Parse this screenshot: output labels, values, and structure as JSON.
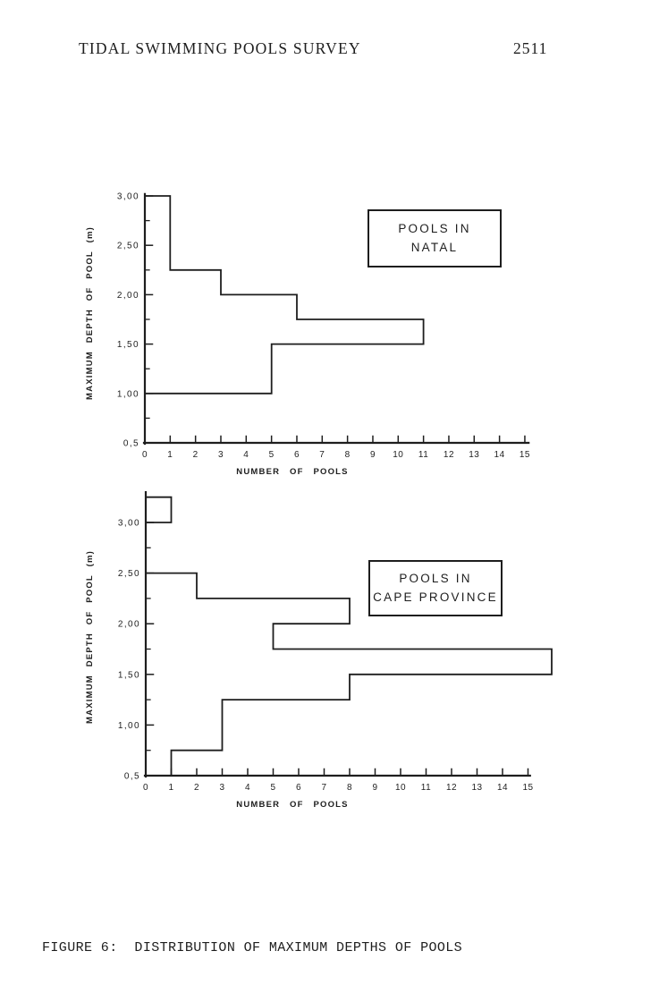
{
  "header": {
    "title": "TIDAL SWIMMING POOLS SURVEY",
    "page_number": "2511"
  },
  "caption": "FIGURE 6:  DISTRIBUTION OF MAXIMUM DEPTHS OF POOLS",
  "colors": {
    "ink": "#1e1e1e",
    "paper": "#ffffff"
  },
  "chart_data": [
    {
      "type": "bar",
      "subtype": "horizontal-step-histogram",
      "title": "POOLS IN NATAL",
      "legend": {
        "line1": "POOLS IN",
        "line2": "NATAL"
      },
      "xlabel": "NUMBER OF POOLS",
      "ylabel": "MAXIMUM DEPTH OF POOL (m)",
      "xlim": [
        0,
        15
      ],
      "ylim": [
        0.5,
        3.0
      ],
      "x_ticks": [
        0,
        1,
        2,
        3,
        4,
        5,
        6,
        7,
        8,
        9,
        10,
        11,
        12,
        13,
        14,
        15
      ],
      "y_ticks": [
        {
          "value": 3.0,
          "label": "3,00"
        },
        {
          "value": 2.5,
          "label": "2,50"
        },
        {
          "value": 2.0,
          "label": "2,00"
        },
        {
          "value": 1.5,
          "label": "1,50"
        },
        {
          "value": 1.0,
          "label": "1,00"
        },
        {
          "value": 0.5,
          "label": "0,5"
        }
      ],
      "y_minor_tick_step": 0.25,
      "bins": [
        {
          "depth_from": 2.25,
          "depth_to": 3.0,
          "count": 1
        },
        {
          "depth_from": 2.0,
          "depth_to": 2.25,
          "count": 3
        },
        {
          "depth_from": 1.75,
          "depth_to": 2.0,
          "count": 6
        },
        {
          "depth_from": 1.5,
          "depth_to": 1.75,
          "count": 11
        },
        {
          "depth_from": 1.0,
          "depth_to": 1.5,
          "count": 5
        },
        {
          "depth_from": 0.5,
          "depth_to": 1.0,
          "count": 0
        }
      ]
    },
    {
      "type": "bar",
      "subtype": "horizontal-step-histogram",
      "title": "POOLS IN CAPE PROVINCE",
      "legend": {
        "line1": "POOLS IN",
        "line2": "CAPE PROVINCE"
      },
      "xlabel": "NUMBER OF POOLS",
      "ylabel": "MAXIMUM DEPTH OF POOL (m)",
      "xlim": [
        0,
        15
      ],
      "ylim": [
        0.5,
        3.3
      ],
      "x_ticks": [
        0,
        1,
        2,
        3,
        4,
        5,
        6,
        7,
        8,
        9,
        10,
        11,
        12,
        13,
        14,
        15
      ],
      "y_ticks": [
        {
          "value": 3.0,
          "label": "3,00"
        },
        {
          "value": 2.5,
          "label": "2,50"
        },
        {
          "value": 2.0,
          "label": "2,00"
        },
        {
          "value": 1.5,
          "label": "1,50"
        },
        {
          "value": 1.0,
          "label": "1,00"
        },
        {
          "value": 0.5,
          "label": "0,5"
        }
      ],
      "y_minor_tick_step": 0.25,
      "bins": [
        {
          "depth_from": 3.0,
          "depth_to": 3.25,
          "count": 1
        },
        {
          "depth_from": 2.5,
          "depth_to": 3.0,
          "count": 0
        },
        {
          "depth_from": 2.25,
          "depth_to": 2.5,
          "count": 2
        },
        {
          "depth_from": 2.0,
          "depth_to": 2.25,
          "count": 8
        },
        {
          "depth_from": 1.75,
          "depth_to": 2.0,
          "count": 5
        },
        {
          "depth_from": 1.5,
          "depth_to": 1.75,
          "count": 16
        },
        {
          "depth_from": 1.25,
          "depth_to": 1.5,
          "count": 8
        },
        {
          "depth_from": 0.75,
          "depth_to": 1.25,
          "count": 3
        },
        {
          "depth_from": 0.5,
          "depth_to": 0.75,
          "count": 1
        }
      ]
    }
  ]
}
